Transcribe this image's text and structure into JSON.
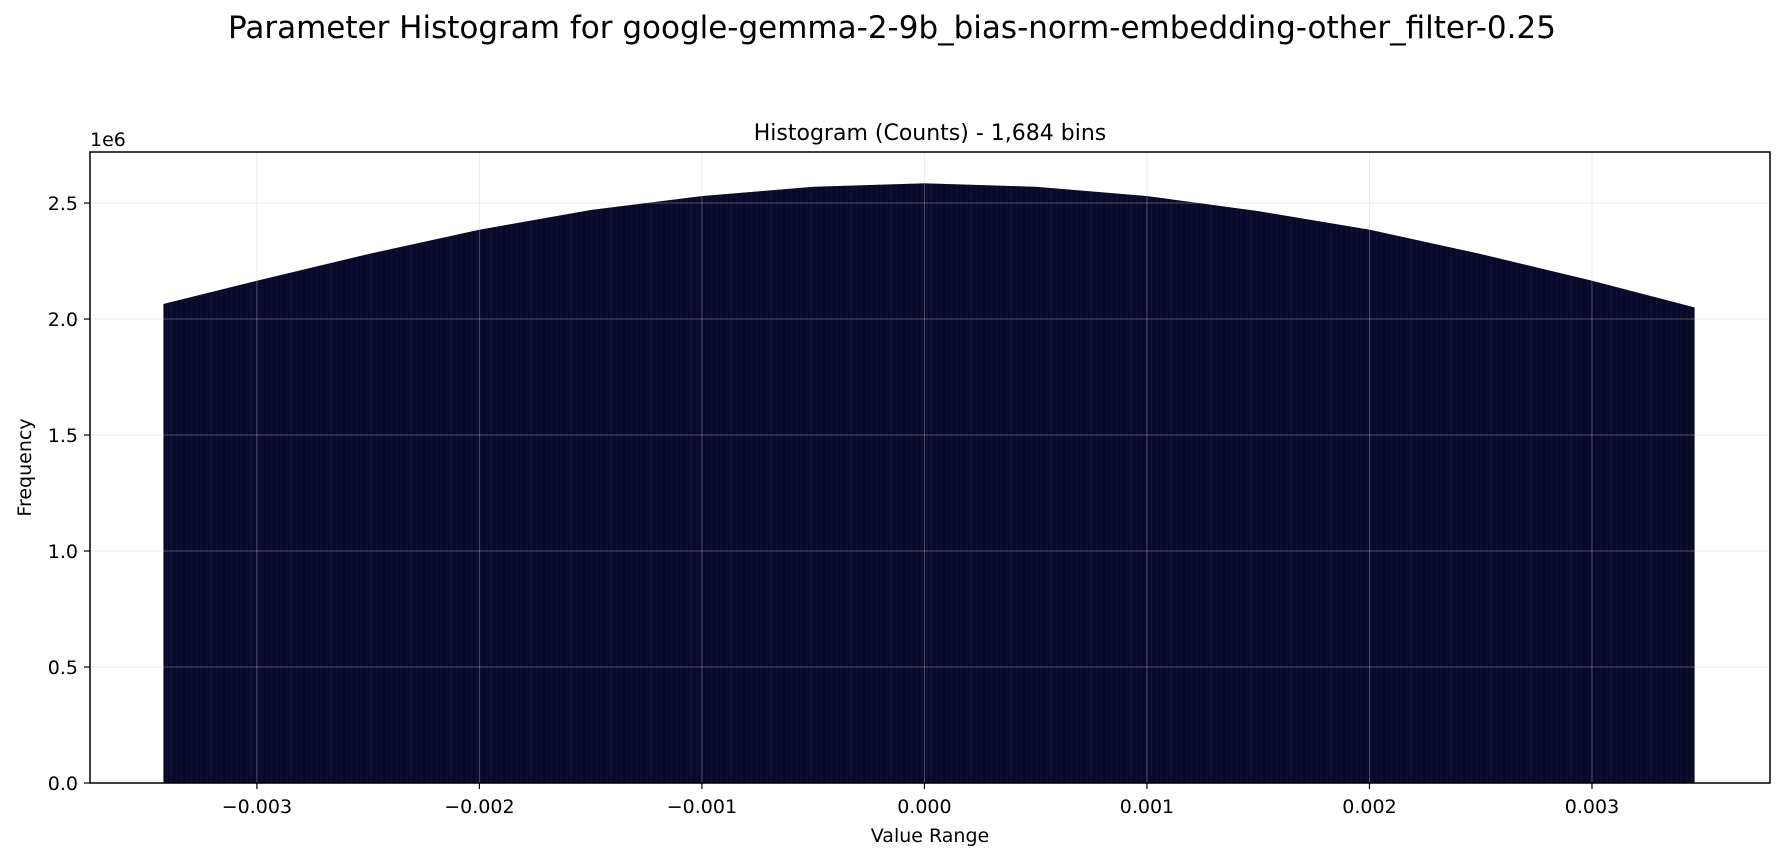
{
  "figure": {
    "suptitle": "Parameter Histogram for google-gemma-2-9b_bias-norm-embedding-other_filter-0.25"
  },
  "chart_data": {
    "type": "bar",
    "title": "Histogram (Counts) - 1,684 bins",
    "xlabel": "Value Range",
    "ylabel": "Frequency",
    "y_offset_label": "1e6",
    "bin_count": 1684,
    "x_range": [
      -0.00342,
      0.00346
    ],
    "xlim": [
      -0.00375,
      0.0038
    ],
    "ylim": [
      0,
      2720000
    ],
    "xticks": [
      -0.003,
      -0.002,
      -0.001,
      0.0,
      0.001,
      0.002,
      0.003
    ],
    "xtick_labels": [
      "−0.003",
      "−0.002",
      "−0.001",
      "0.000",
      "0.001",
      "0.002",
      "0.003"
    ],
    "yticks": [
      0,
      500000,
      1000000,
      1500000,
      2000000,
      2500000
    ],
    "ytick_labels": [
      "0.0",
      "0.5",
      "1.0",
      "1.5",
      "2.0",
      "2.5"
    ],
    "grid": true,
    "bar_color": "#08082a",
    "envelope": {
      "x": [
        -0.00342,
        -0.003,
        -0.0025,
        -0.002,
        -0.0015,
        -0.001,
        -0.0005,
        0.0,
        0.0005,
        0.001,
        0.0015,
        0.002,
        0.0025,
        0.003,
        0.00346
      ],
      "y": [
        2065000,
        2165000,
        2280000,
        2385000,
        2470000,
        2530000,
        2570000,
        2585000,
        2570000,
        2530000,
        2465000,
        2385000,
        2280000,
        2165000,
        2050000
      ]
    }
  }
}
